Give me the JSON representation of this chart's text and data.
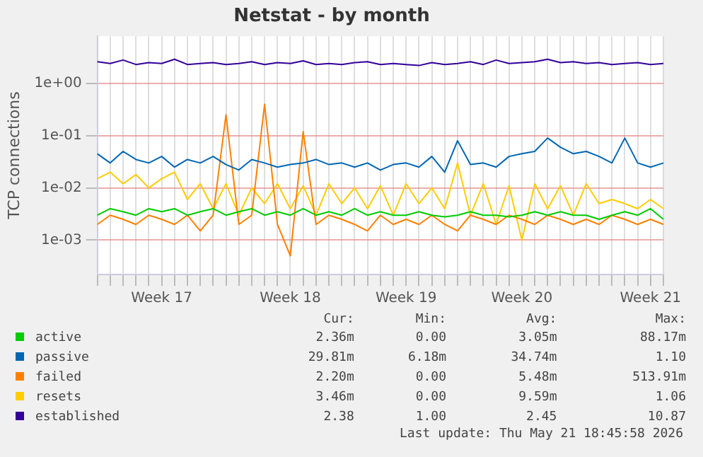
{
  "chart_data": {
    "type": "line",
    "title": "Netstat - by month",
    "ylabel": "TCP connections",
    "log": "y",
    "grid": true,
    "legend": "bottom",
    "marker": "none",
    "line_style": "solid",
    "categories": [
      null,
      null,
      null,
      null,
      null,
      "Week 17",
      null,
      null,
      null,
      null,
      null,
      null,
      null,
      null,
      null,
      "Week 18",
      null,
      null,
      null,
      null,
      null,
      null,
      null,
      null,
      "Week 19",
      null,
      null,
      null,
      null,
      null,
      null,
      null,
      null,
      "Week 20",
      null,
      null,
      null,
      null,
      null,
      null,
      null,
      null,
      null,
      "Week 21",
      null
    ],
    "ylim": [
      0.00022,
      8
    ],
    "yticks": [
      {
        "value": 0.001,
        "label": "1e-03"
      },
      {
        "value": 0.01,
        "label": "1e-02"
      },
      {
        "value": 0.1,
        "label": "1e-01"
      },
      {
        "value": 1,
        "label": "1e+00"
      }
    ],
    "series": [
      {
        "name": "active",
        "color": "#00cc00",
        "values": [
          0.003,
          0.004,
          0.0035,
          0.003,
          0.004,
          0.0035,
          0.004,
          0.003,
          0.0035,
          0.004,
          0.003,
          0.0035,
          0.004,
          0.003,
          0.0035,
          0.003,
          0.004,
          0.003,
          0.0035,
          0.003,
          0.004,
          0.003,
          0.0035,
          0.003,
          0.003,
          0.0035,
          0.003,
          0.0028,
          0.003,
          0.0035,
          0.003,
          0.003,
          0.0028,
          0.003,
          0.0035,
          0.003,
          0.0035,
          0.003,
          0.003,
          0.0025,
          0.003,
          0.0035,
          0.003,
          0.004,
          0.0025
        ]
      },
      {
        "name": "passive",
        "color": "#0066b3",
        "values": [
          0.045,
          0.03,
          0.05,
          0.035,
          0.03,
          0.04,
          0.025,
          0.035,
          0.03,
          0.04,
          0.028,
          0.022,
          0.035,
          0.03,
          0.025,
          0.028,
          0.03,
          0.035,
          0.028,
          0.03,
          0.025,
          0.03,
          0.022,
          0.028,
          0.03,
          0.025,
          0.04,
          0.02,
          0.08,
          0.028,
          0.03,
          0.025,
          0.04,
          0.045,
          0.05,
          0.09,
          0.06,
          0.045,
          0.05,
          0.04,
          0.03,
          0.09,
          0.03,
          0.025,
          0.03
        ]
      },
      {
        "name": "failed",
        "color": "#ff8000",
        "values": [
          0.002,
          0.003,
          0.0025,
          0.002,
          0.003,
          0.0025,
          0.002,
          0.003,
          0.0015,
          0.003,
          0.25,
          0.002,
          0.003,
          0.4,
          0.002,
          0.0005,
          0.12,
          0.002,
          0.003,
          0.0025,
          0.002,
          0.0015,
          0.003,
          0.002,
          0.0025,
          0.002,
          0.003,
          0.002,
          0.0015,
          0.003,
          0.0025,
          0.002,
          0.003,
          0.0025,
          0.002,
          0.003,
          0.0025,
          0.002,
          0.0025,
          0.002,
          0.003,
          0.0025,
          0.002,
          0.0025,
          0.002
        ]
      },
      {
        "name": "resets",
        "color": "#ffcc00",
        "values": [
          0.015,
          0.02,
          0.012,
          0.018,
          0.01,
          0.015,
          0.02,
          0.006,
          0.012,
          0.004,
          0.012,
          0.003,
          0.01,
          0.005,
          0.012,
          0.004,
          0.011,
          0.003,
          0.012,
          0.005,
          0.01,
          0.004,
          0.011,
          0.003,
          0.012,
          0.005,
          0.01,
          0.004,
          0.03,
          0.003,
          0.012,
          0.002,
          0.011,
          0.001,
          0.012,
          0.004,
          0.011,
          0.003,
          0.012,
          0.005,
          0.006,
          0.005,
          0.004,
          0.006,
          0.004
        ]
      },
      {
        "name": "established",
        "color": "#330099",
        "values": [
          2.6,
          2.4,
          2.8,
          2.3,
          2.5,
          2.4,
          2.9,
          2.3,
          2.4,
          2.5,
          2.3,
          2.4,
          2.6,
          2.3,
          2.5,
          2.4,
          2.7,
          2.3,
          2.4,
          2.3,
          2.5,
          2.6,
          2.3,
          2.4,
          2.3,
          2.2,
          2.5,
          2.3,
          2.4,
          2.6,
          2.3,
          2.8,
          2.4,
          2.5,
          2.6,
          2.9,
          2.5,
          2.6,
          2.4,
          2.5,
          2.3,
          2.4,
          2.5,
          2.3,
          2.4
        ]
      }
    ],
    "annotations": [
      "Cur: Min: Avg: Max:",
      "2.36m 0.00 3.05m 88.17m",
      "29.81m 6.18m 34.74m 1.10",
      "2.20m 0.00 5.48m 513.91m",
      "3.46m 0.00 9.59m 1.06",
      "2.38 1.00 2.45 10.87",
      "Last update: Thu May 21 18:45:58 2026"
    ]
  }
}
